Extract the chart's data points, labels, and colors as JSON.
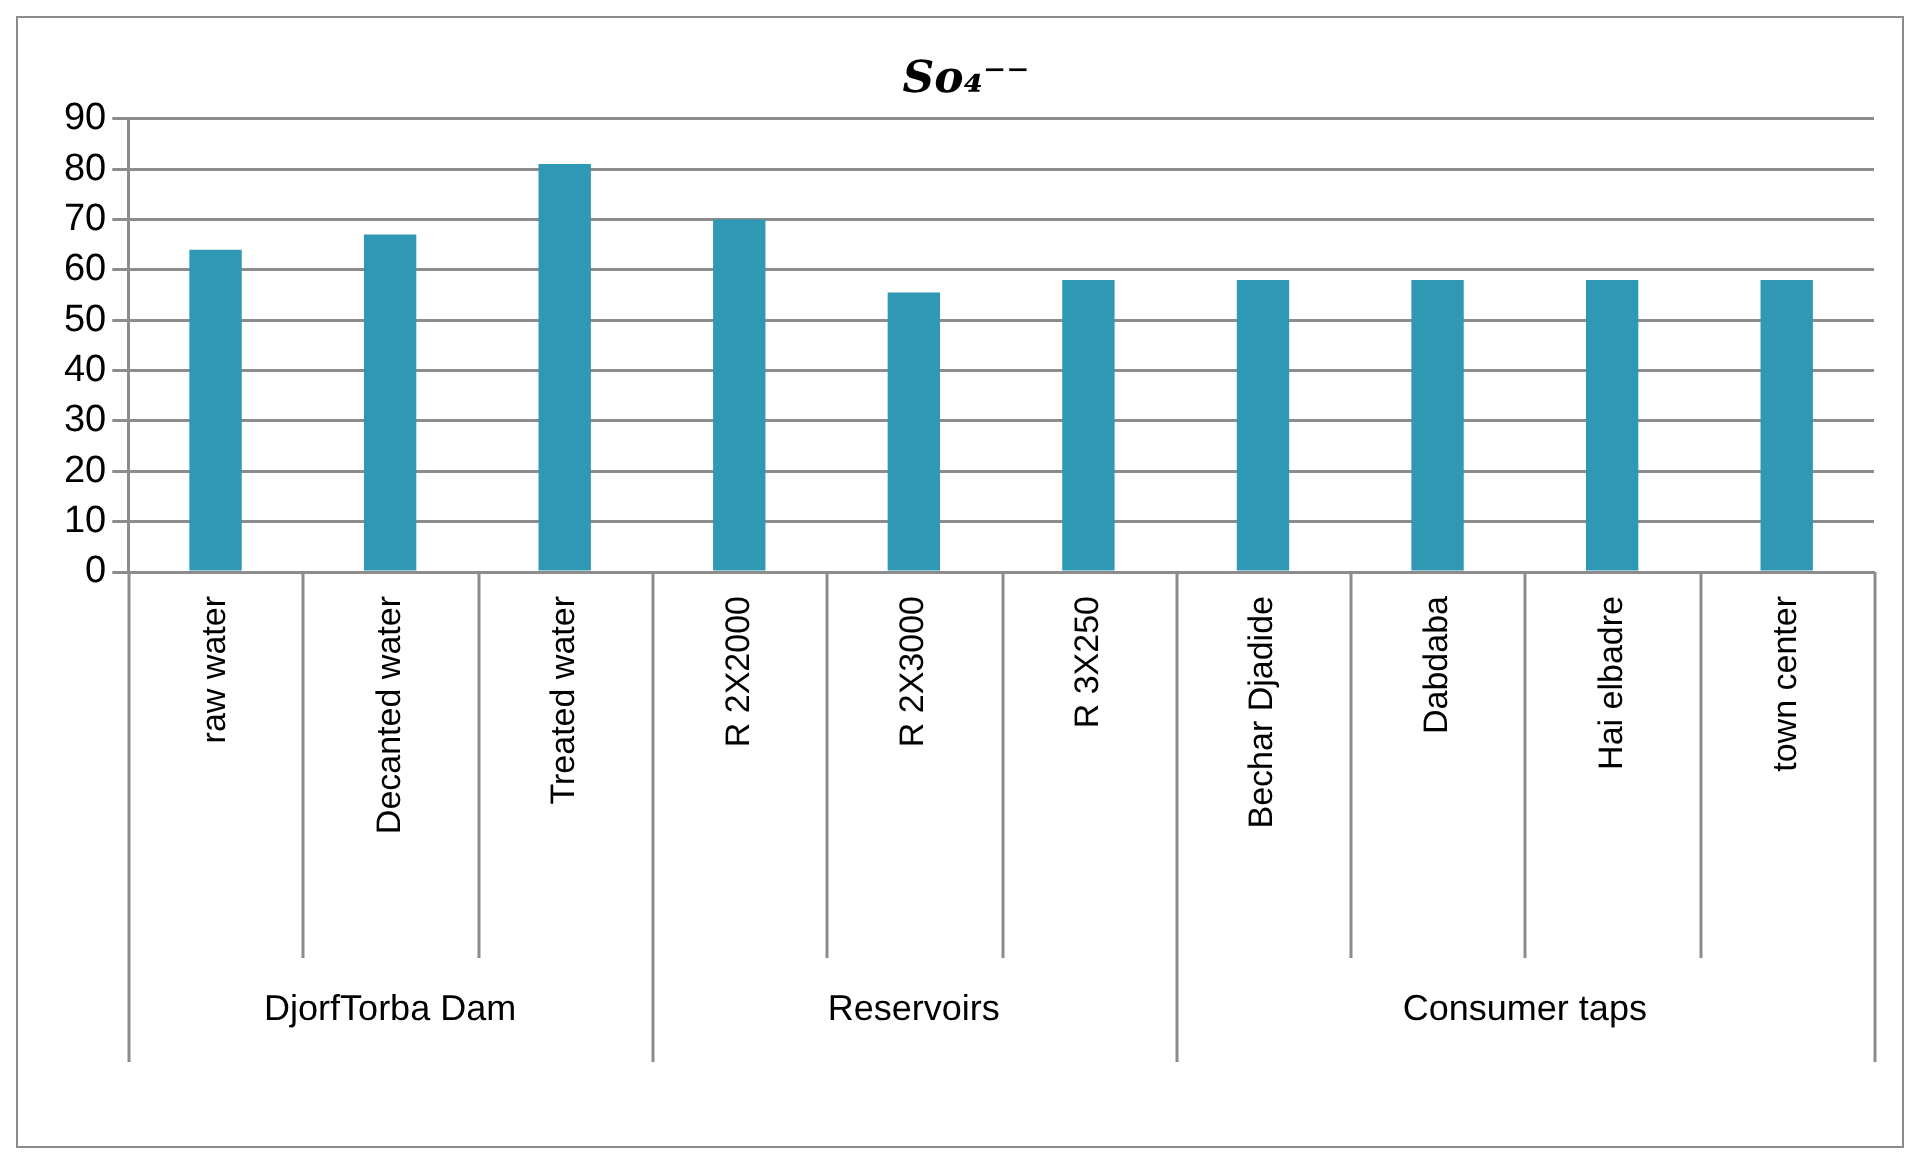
{
  "chart_data": {
    "type": "bar",
    "title": "So₄⁻⁻",
    "categories": [
      "raw water",
      "Decanted water",
      "Treated water",
      "R 2X2000",
      "R 2X3000",
      "R 3X250",
      "Bechar Djadide",
      "Dabdaba",
      "Hai elbadre",
      "town center"
    ],
    "values": [
      64,
      67,
      81,
      70,
      55.5,
      58,
      58,
      58,
      58,
      58
    ],
    "color": "#2f98b4",
    "ylim": [
      0,
      90
    ],
    "yticks": [
      0,
      10,
      20,
      30,
      40,
      50,
      60,
      70,
      80,
      90
    ],
    "grid": "y",
    "legend": false,
    "annotations": [
      "DjorfTorba Dam",
      "Reservoirs",
      "Consumer taps"
    ]
  }
}
